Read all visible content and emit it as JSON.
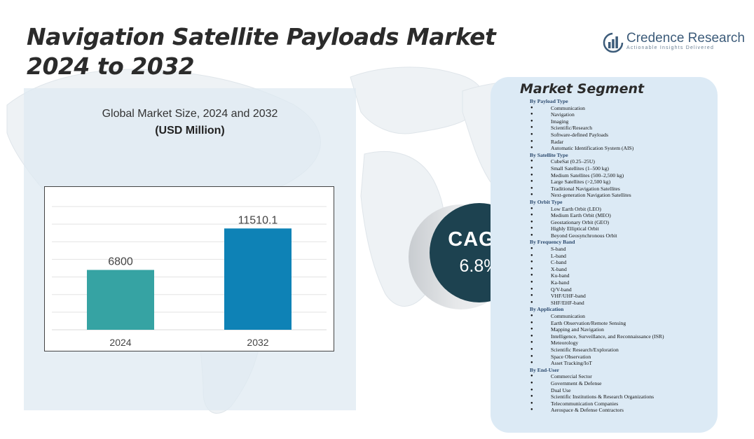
{
  "title_lines": [
    "Navigation Satellite Payloads Market",
    "2024 to 2032"
  ],
  "logo": {
    "name": "Credence Research",
    "tagline": "Actionable Insights Delivered",
    "icon": "bar-chart-logo-icon"
  },
  "colors": {
    "bar_2024": "#36a3a3",
    "bar_2032": "#0e82b6",
    "cagr_circle": "#1d4250",
    "segment_panel": "#dceaf5",
    "chart_panel": "#dfeaf2"
  },
  "chart_data": {
    "type": "bar",
    "title": "Global Market Size, 2024 and 2032",
    "subtitle": "(USD Million)",
    "categories": [
      "2024",
      "2032"
    ],
    "values": [
      6800,
      11510.1
    ],
    "data_labels": [
      "6800",
      "11510.1"
    ],
    "ylim": [
      0,
      14000
    ],
    "grid": true,
    "legend": "none"
  },
  "cagr": {
    "label": "CAGR",
    "value": "6.8%"
  },
  "market_segment": {
    "title": "Market Segment",
    "groups": [
      {
        "heading": "By Payload Type",
        "items": [
          "Communication",
          "Navigation",
          "Imaging",
          "Scientific/Research",
          "Software-defined Payloads",
          "Radar",
          "Automatic Identification System (AIS)"
        ]
      },
      {
        "heading": "By Satellite Type",
        "items": [
          "CubeSat (0.25–25U)",
          "Small Satellites (1–500 kg)",
          "Medium Satellites (500–2,500 kg)",
          "Large Satellites (>2,500 kg)",
          "Traditional Navigation Satellites",
          "Next-generation Navigation Satellites"
        ]
      },
      {
        "heading": "By Orbit Type",
        "items": [
          "Low Earth Orbit (LEO)",
          "Medium Earth Orbit (MEO)",
          "Geostationary Orbit (GEO)",
          "Highly Elliptical Orbit",
          "Beyond Geosynchronous Orbit"
        ]
      },
      {
        "heading": "By Frequency  Band",
        "items": [
          "S-band",
          "L-band",
          "C-band",
          "X-band",
          "Ku-band",
          "Ka-band",
          "Q/V-band",
          "VHF/UHF-band",
          "SHF/EHF-band"
        ]
      },
      {
        "heading": "By Application",
        "items": [
          "Communication",
          "Earth Observation/Remote Sensing",
          "Mapping and Navigation",
          "Intelligence, Surveillance, and Reconnaissance (ISR)",
          "Meteorology",
          "Scientific Research/Exploration",
          "Space Observation",
          "Asset Tracking/IoT"
        ]
      },
      {
        "heading": "By End-User",
        "items": [
          "Commercial  Sector",
          "Government & Defense",
          "Dual Use",
          "Scientific Institutions & Research Organizations",
          "Telecommunication Companies",
          "Aerospace & Defense Contractors"
        ]
      }
    ]
  }
}
